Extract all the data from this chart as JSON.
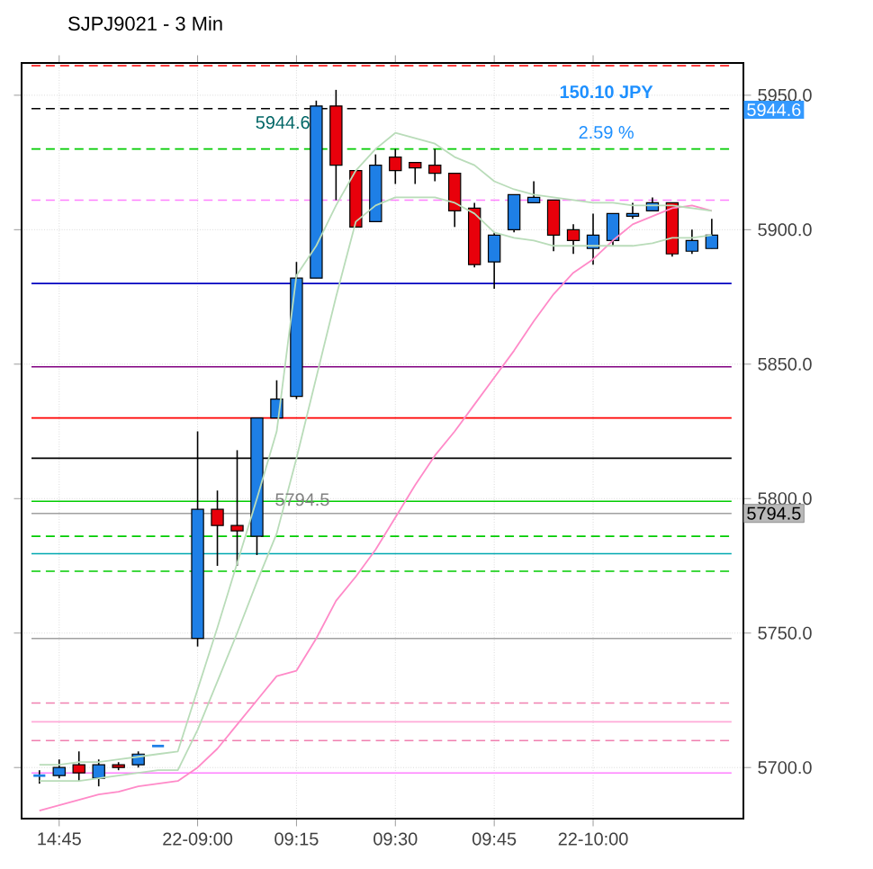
{
  "chart_data": {
    "type": "candlestick",
    "title": "SJPJ9021 - 3 Min",
    "categories": [
      null,
      "14:45",
      null,
      null,
      null,
      null,
      null,
      null,
      "22-09:00",
      null,
      null,
      null,
      null,
      "09:15",
      null,
      null,
      null,
      null,
      "09:30",
      null,
      null,
      null,
      null,
      "09:45",
      null,
      null,
      null,
      null,
      "22-10:00",
      null,
      null,
      null,
      null,
      null,
      null
    ],
    "ohlc": [
      [
        5697,
        5699,
        5694,
        5697
      ],
      [
        5697,
        5703,
        5696,
        5700
      ],
      [
        5701,
        5706,
        5695,
        5698
      ],
      [
        5696,
        5703,
        5693,
        5701
      ],
      [
        5701,
        5702,
        5699,
        5700
      ],
      [
        5701,
        5706,
        5700,
        5705
      ],
      [
        5708,
        5708,
        5708,
        5708
      ],
      null,
      [
        5748,
        5825,
        5745,
        5796
      ],
      [
        5796,
        5803,
        5775,
        5790
      ],
      [
        5790,
        5818,
        5775,
        5788
      ],
      [
        5786,
        5830,
        5779,
        5830
      ],
      [
        5830,
        5844,
        5830,
        5837
      ],
      [
        5838,
        5888,
        5837,
        5882
      ],
      [
        5882,
        5948,
        5882,
        5946
      ],
      [
        5946,
        5952,
        5911,
        5924
      ],
      [
        5922,
        5922,
        5901,
        5901
      ],
      [
        5903,
        5928,
        5903,
        5924
      ],
      [
        5927,
        5930,
        5917,
        5922
      ],
      [
        5925,
        5925,
        5917,
        5923
      ],
      [
        5924,
        5930,
        5918,
        5921
      ],
      [
        5921,
        5921,
        5901,
        5907
      ],
      [
        5908,
        5910,
        5886,
        5887
      ],
      [
        5888,
        5899,
        5878,
        5898
      ],
      [
        5900,
        5913,
        5899,
        5913
      ],
      [
        5910,
        5918,
        5910,
        5912
      ],
      [
        5911,
        5911,
        5892,
        5898
      ],
      [
        5900,
        5902,
        5891,
        5896
      ],
      [
        5893,
        5906,
        5887,
        5898
      ],
      [
        5896,
        5906,
        5894,
        5906
      ],
      [
        5905,
        5910,
        5904,
        5906
      ],
      [
        5907,
        5912,
        5907,
        5910
      ],
      [
        5910,
        5910,
        5890,
        5891
      ],
      [
        5892,
        5900,
        5891,
        5896
      ],
      [
        5893,
        5904,
        5893,
        5898
      ]
    ],
    "colors": [
      "#1e7fe6",
      "#1e7fe6",
      "#e8000b",
      "#1e7fe6",
      "#e8000b",
      "#1e7fe6",
      "#1e7fe6",
      null,
      "#1e7fe6",
      "#e8000b",
      "#e8000b",
      "#1e7fe6",
      "#1e7fe6",
      "#1e7fe6",
      "#1e7fe6",
      "#e8000b",
      "#e8000b",
      "#1e7fe6",
      "#e8000b",
      "#e8000b",
      "#e8000b",
      "#e8000b",
      "#e8000b",
      "#1e7fe6",
      "#1e7fe6",
      "#1e7fe6",
      "#e8000b",
      "#e8000b",
      "#1e7fe6",
      "#1e7fe6",
      "#1e7fe6",
      "#1e7fe6",
      "#e8000b",
      "#1e7fe6",
      "#1e7fe6"
    ],
    "series": [
      {
        "type": "line",
        "color": "#ff8ac8",
        "values": [
          5684,
          5686,
          5688,
          5690,
          5691,
          5693,
          5694,
          5695,
          5700,
          5707,
          5716,
          5725,
          5734,
          5736,
          5748,
          5762,
          5771,
          5781,
          5793,
          5805,
          5816,
          5825,
          5835,
          5845,
          5855,
          5866,
          5876,
          5884,
          5889,
          5896,
          5902,
          5905,
          5908,
          5909,
          5907
        ]
      },
      {
        "type": "line",
        "color": "#b9dcb9",
        "values": [
          5701,
          5701,
          5702,
          5702,
          5703,
          5704,
          5705,
          5706,
          5729,
          5752,
          5776,
          5800,
          5825,
          5883,
          5894,
          5909,
          5922,
          5930,
          5936,
          5934,
          5932,
          5927,
          5924,
          5918,
          5915,
          5913,
          5912,
          5911,
          5910,
          5910,
          5909,
          5909,
          5909,
          5908,
          5907
        ]
      },
      {
        "type": "line",
        "color": "#b9dcb9",
        "values": [
          5695,
          5695,
          5695,
          5696,
          5697,
          5698,
          5699,
          5699,
          5714,
          5732,
          5750,
          5769,
          5787,
          5815,
          5845,
          5875,
          5903,
          5909,
          5912,
          5912,
          5912,
          5910,
          5906,
          5899,
          5897,
          5896,
          5894,
          5894,
          5894,
          5894,
          5894,
          5895,
          5897,
          5897,
          5898
        ]
      }
    ],
    "ref_lines": [
      {
        "axis": "y",
        "value": 5961,
        "color": "#ff0000",
        "line_style": "dashed"
      },
      {
        "axis": "y",
        "value": 5945,
        "color": "#000000",
        "line_style": "dashed"
      },
      {
        "axis": "y",
        "value": 5930,
        "color": "#00cc00",
        "line_style": "dashed"
      },
      {
        "axis": "y",
        "value": 5911,
        "color": "#ff80ff",
        "line_style": "dashed"
      },
      {
        "axis": "y",
        "value": 5880,
        "color": "#0000c0",
        "line_style": "solid"
      },
      {
        "axis": "y",
        "value": 5849,
        "color": "#800080",
        "line_style": "solid"
      },
      {
        "axis": "y",
        "value": 5830,
        "color": "#ff0000",
        "line_style": "solid"
      },
      {
        "axis": "y",
        "value": 5815,
        "color": "#000000",
        "line_style": "solid"
      },
      {
        "axis": "y",
        "value": 5799,
        "color": "#00cc00",
        "line_style": "solid"
      },
      {
        "axis": "y",
        "value": 5794.5,
        "color": "#a0a0a0",
        "line_style": "solid"
      },
      {
        "axis": "y",
        "value": 5786,
        "color": "#00cc00",
        "line_style": "dashed"
      },
      {
        "axis": "y",
        "value": 5779.5,
        "color": "#00a8b0",
        "line_style": "solid"
      },
      {
        "axis": "y",
        "value": 5773,
        "color": "#00cc00",
        "line_style": "dashed"
      },
      {
        "axis": "y",
        "value": 5748,
        "color": "#a0a0a0",
        "line_style": "solid"
      },
      {
        "axis": "y",
        "value": 5724,
        "color": "#f080b0",
        "line_style": "dashed"
      },
      {
        "axis": "y",
        "value": 5717,
        "color": "#ffaad8",
        "line_style": "solid"
      },
      {
        "axis": "y",
        "value": 5710,
        "color": "#f080b0",
        "line_style": "dashed"
      },
      {
        "axis": "y",
        "value": 5698,
        "color": "#ff80ff",
        "line_style": "solid"
      }
    ],
    "annotations": [
      {
        "text": "5944.6",
        "y": 5944.6
      },
      {
        "text": "5794.5",
        "y": 5794.5
      },
      "150.10 JPY",
      "2.59 %",
      "5944.6",
      "5794.5"
    ],
    "ylim": [
      5681,
      5962
    ],
    "yticks": [
      {
        "value": 5700,
        "label": "5700.0"
      },
      {
        "value": 5750,
        "label": "5750.0"
      },
      {
        "value": 5800,
        "label": "5800.0"
      },
      {
        "value": 5850,
        "label": "5850.0"
      },
      {
        "value": 5900,
        "label": "5900.0"
      },
      {
        "value": 5950,
        "label": "5950.0"
      }
    ],
    "grid": true
  }
}
